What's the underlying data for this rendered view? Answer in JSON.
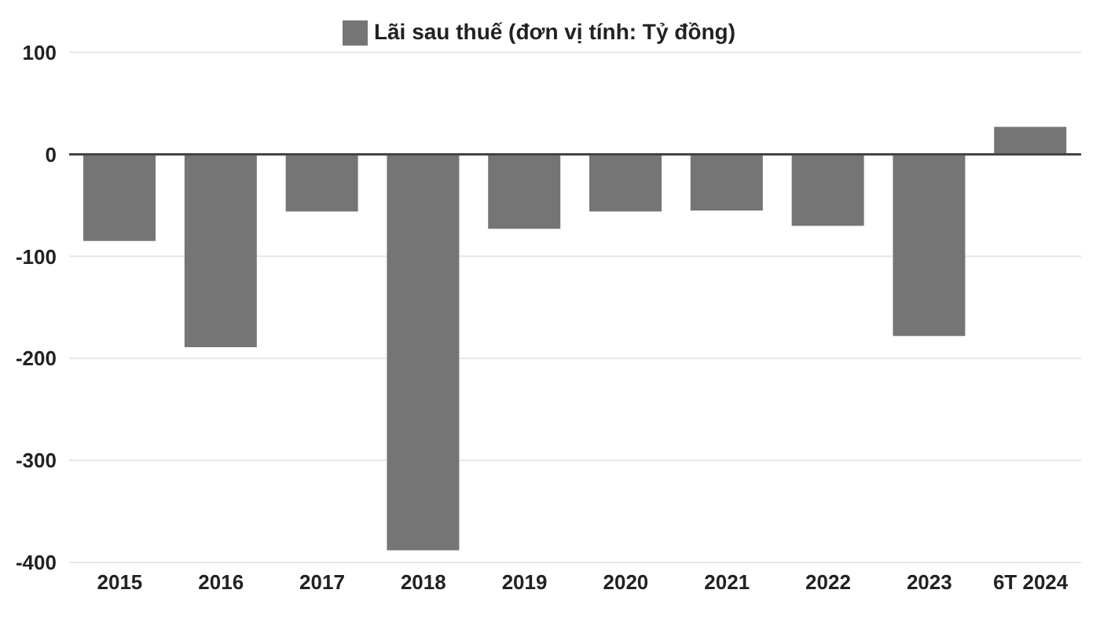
{
  "chart_data": {
    "type": "bar",
    "categories": [
      "2015",
      "2016",
      "2017",
      "2018",
      "2019",
      "2020",
      "2021",
      "2022",
      "2023",
      "6T 2024"
    ],
    "series": [
      {
        "name": "Lãi sau thuế (đơn vị tính: Tỷ đồng)",
        "color": "#757575",
        "values": [
          -85,
          -189,
          -56,
          -388,
          -73,
          -56,
          -55,
          -70,
          -178,
          27
        ]
      }
    ],
    "ylim": [
      -400,
      100
    ],
    "yticks": [
      -400,
      -300,
      -200,
      -100,
      0,
      100
    ],
    "grid": "y",
    "legend": "top"
  }
}
